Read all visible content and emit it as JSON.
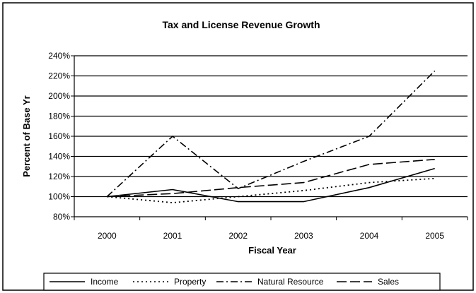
{
  "chart_data": {
    "type": "line",
    "title": "Tax and License Revenue Growth",
    "xlabel": "Fiscal Year",
    "ylabel": "Percent of Base Yr",
    "categories": [
      "2000",
      "2001",
      "2002",
      "2003",
      "2004",
      "2005"
    ],
    "ylim": [
      80,
      240
    ],
    "yticks": [
      80,
      100,
      120,
      140,
      160,
      180,
      200,
      220,
      240
    ],
    "ytick_labels": [
      "80%",
      "100%",
      "120%",
      "140%",
      "160%",
      "180%",
      "200%",
      "220%",
      "240%"
    ],
    "grid": "horizontal",
    "legend_position": "bottom",
    "series": [
      {
        "name": "Income",
        "values": [
          100,
          107,
          95,
          95,
          109,
          128
        ],
        "dash": "solid"
      },
      {
        "name": "Property",
        "values": [
          100,
          94,
          100,
          106,
          114,
          118
        ],
        "dash": "dotted"
      },
      {
        "name": "Natural Resource",
        "values": [
          100,
          160,
          108,
          135,
          160,
          225
        ],
        "dash": "dashdot"
      },
      {
        "name": "Sales",
        "values": [
          100,
          103,
          109,
          114,
          132,
          137
        ],
        "dash": "dashed"
      }
    ]
  }
}
